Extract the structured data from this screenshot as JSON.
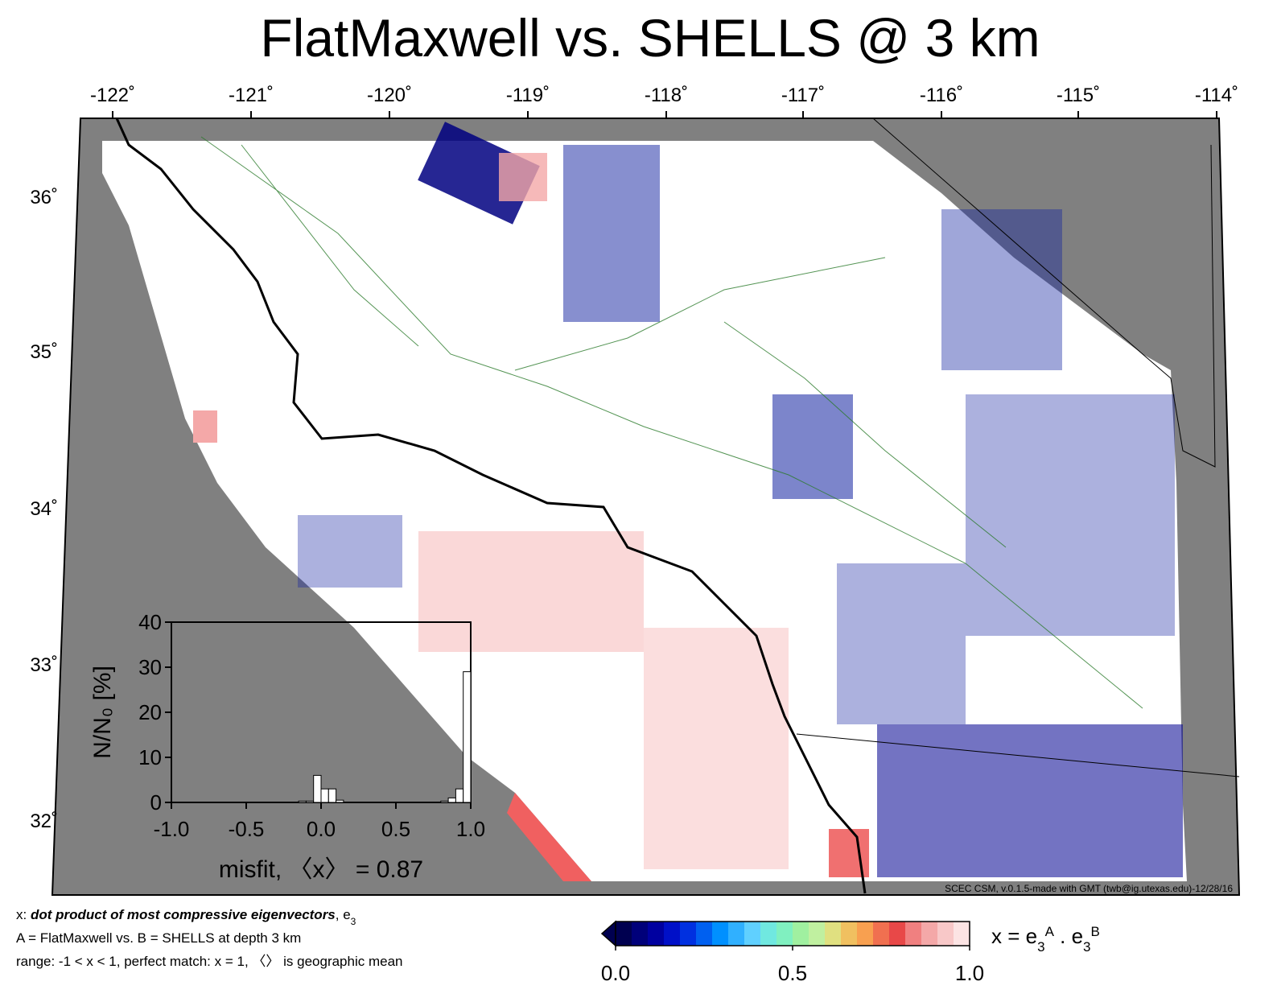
{
  "title": "FlatMaxwell vs. SHELLS @ 3 km",
  "map": {
    "lon_labels": [
      "-122˚",
      "-121˚",
      "-120˚",
      "-119˚",
      "-118˚",
      "-117˚",
      "-116˚",
      "-115˚",
      "-114˚"
    ],
    "lat_labels": [
      "36˚",
      "35˚",
      "34˚",
      "33˚",
      "32˚"
    ],
    "credit": "SCEC CSM, v.0.1.5-made with GMT (twb@ig.utexas.edu)-12/28/16"
  },
  "notes": [
    [
      "x: ",
      "dot product of most compressive eigenvectors",
      ", e",
      "3"
    ],
    [
      "A = FlatMaxwell vs.  B = SHELLS at depth 3 km"
    ],
    [
      "range: -1 < x < 1, perfect match: x = 1, 〈〉 is geographic mean"
    ]
  ],
  "colorbar": {
    "label": [
      "x = e",
      "3",
      "A",
      " . e",
      "3",
      "B"
    ],
    "clim": [
      0,
      1
    ],
    "ticks": [
      {
        "value": 0,
        "label": "0.0"
      },
      {
        "value": 0.5,
        "label": "0.5"
      },
      {
        "value": 1,
        "label": "1.0"
      }
    ],
    "colors": [
      "#000050",
      "#00007a",
      "#0000a0",
      "#0010c8",
      "#0030e0",
      "#0060f0",
      "#0090ff",
      "#30b0ff",
      "#60d0ff",
      "#70e8e0",
      "#80f0c0",
      "#a0f0a0",
      "#c0f0a0",
      "#e0e080",
      "#f0c060",
      "#f8a050",
      "#f07050",
      "#e84848",
      "#f08080",
      "#f4a8a8",
      "#f8c8c8",
      "#fce4e4"
    ]
  },
  "chart_data": {
    "type": "histogram",
    "color": "#ffffff",
    "xlabel": "misfit, 〈x〉 = 0.87",
    "ylabel": "N/N₀ [%]",
    "bins": [
      -1,
      -0.95,
      -0.9,
      -0.85,
      -0.8,
      -0.75,
      -0.7,
      -0.65,
      -0.6,
      -0.55,
      -0.5,
      -0.45,
      -0.4,
      -0.35,
      -0.3,
      -0.25,
      -0.2,
      -0.15,
      -0.1,
      -0.05,
      0,
      0.05,
      0.1,
      0.15,
      0.2,
      0.25,
      0.3,
      0.35,
      0.4,
      0.45,
      0.5,
      0.55,
      0.6,
      0.65,
      0.7,
      0.75,
      0.8,
      0.85,
      0.9,
      0.95,
      1
    ],
    "values": [
      0,
      0,
      0,
      0,
      0,
      0,
      0,
      0,
      0,
      0,
      0,
      0,
      0,
      0,
      0,
      0,
      0,
      0.3,
      0.3,
      6,
      3,
      3,
      0.5,
      0,
      0,
      0,
      0,
      0,
      0,
      0,
      0,
      0,
      0,
      0,
      0,
      0,
      0.3,
      1,
      3,
      29
    ],
    "xlim": [
      -1,
      1
    ],
    "ylim": [
      0,
      40
    ],
    "xticks": [
      {
        "value": -1,
        "label": "-1.0"
      },
      {
        "value": -0.5,
        "label": "-0.5"
      },
      {
        "value": 0,
        "label": "0.0"
      },
      {
        "value": 0.5,
        "label": "0.5"
      },
      {
        "value": 1,
        "label": "1.0"
      }
    ],
    "yticks": [
      0,
      10,
      20,
      30,
      40
    ]
  }
}
